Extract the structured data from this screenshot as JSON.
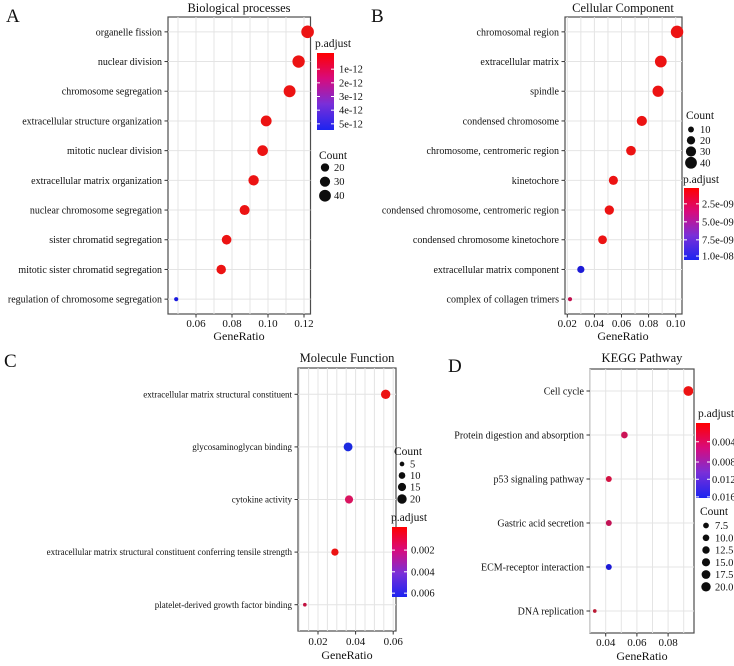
{
  "figure": {
    "background": "#ffffff",
    "panel_border_color": "#4d4d4d",
    "grid_color": "#e4e4e4",
    "text_color": "#111111",
    "count_dot_color": "#0d0d0d",
    "padjust_gradient_stops": [
      "#ff0000",
      "#d80b7c",
      "#7a2fd8",
      "#1c24f0"
    ],
    "red_dot_color": "#ec1313",
    "blue_dot_color": "#1c1ad6"
  },
  "chart_data": [
    {
      "id": "A",
      "type": "scatter",
      "panel_label": "A",
      "title": "Biological processes",
      "xlabel": "GeneRatio",
      "x_ticks": [
        "0.06",
        "0.08",
        "0.10",
        "0.12"
      ],
      "categories": [
        "organelle fission",
        "nuclear division",
        "chromosome segregation",
        "extracellular structure organization",
        "mitotic nuclear division",
        "extracellular matrix organization",
        "nuclear chromosome segregation",
        "sister chromatid segregation",
        "mitotic sister chromatid segregation",
        "regulation of chromosome segregation"
      ],
      "gene_ratio": [
        0.122,
        0.117,
        0.112,
        0.099,
        0.097,
        0.092,
        0.087,
        0.077,
        0.074,
        0.049
      ],
      "count": [
        46,
        44,
        41,
        34,
        33,
        31,
        29,
        27,
        26,
        5
      ],
      "dot_colors": [
        "#ec1313",
        "#ec1313",
        "#ec1313",
        "#ec1313",
        "#ec1313",
        "#ec1313",
        "#ec1313",
        "#ec1313",
        "#ec1313",
        "#1a1ae0"
      ],
      "legend_order": [
        "padjust",
        "count"
      ],
      "legends": {
        "padjust": {
          "title": "p.adjust",
          "ticks": [
            "1e-12",
            "2e-12",
            "3e-12",
            "4e-12",
            "5e-12"
          ]
        },
        "count": {
          "title": "Count",
          "ticks": [
            "20",
            "30",
            "40"
          ],
          "sizes": [
            20,
            30,
            40
          ]
        }
      }
    },
    {
      "id": "B",
      "type": "scatter",
      "panel_label": "B",
      "title": "Cellular Component",
      "xlabel": "GeneRatio",
      "x_ticks": [
        "0.02",
        "0.04",
        "0.06",
        "0.08",
        "0.10"
      ],
      "categories": [
        "chromosomal region",
        "extracellular matrix",
        "spindle",
        "condensed chromosome",
        "chromosome, centromeric region",
        "kinetochore",
        "condensed chromosome, centromeric region",
        "condensed chromosome kinetochore",
        "extracellular matrix component",
        "complex of collagen trimers"
      ],
      "gene_ratio": [
        0.101,
        0.089,
        0.087,
        0.075,
        0.067,
        0.054,
        0.051,
        0.046,
        0.03,
        0.022
      ],
      "count": [
        45,
        40,
        36,
        30,
        27,
        24,
        25,
        22,
        15,
        5
      ],
      "dot_colors": [
        "#ec1313",
        "#ec1313",
        "#ec1313",
        "#ec1313",
        "#ec1313",
        "#ec1313",
        "#ec1313",
        "#ec1313",
        "#1c1ad6",
        "#c2104e"
      ],
      "legend_order": [
        "count",
        "padjust"
      ],
      "legends": {
        "count": {
          "title": "Count",
          "ticks": [
            "10",
            "20",
            "30",
            "40"
          ],
          "sizes": [
            10,
            20,
            30,
            40
          ]
        },
        "padjust": {
          "title": "p.adjust",
          "ticks": [
            "2.5e-09",
            "5.0e-09",
            "7.5e-09",
            "1.0e-08"
          ]
        }
      }
    },
    {
      "id": "C",
      "type": "scatter",
      "panel_label": "C",
      "title": "Molecule Function",
      "xlabel": "GeneRatio",
      "x_ticks": [
        "0.02",
        "0.04",
        "0.06"
      ],
      "categories": [
        "extracellular matrix structural constituent",
        "glycosaminoglycan binding",
        "cytokine activity",
        "extracellular matrix structural constituent conferring tensile strength",
        "platelet-derived growth factor binding"
      ],
      "gene_ratio": [
        0.056,
        0.036,
        0.0365,
        0.029,
        0.013
      ],
      "count": [
        20,
        18,
        15,
        12,
        3
      ],
      "dot_colors": [
        "#ec1313",
        "#1b2ae0",
        "#d9145f",
        "#ec1313",
        "#c21240"
      ],
      "legend_order": [
        "count",
        "padjust"
      ],
      "legends": {
        "count": {
          "title": "Count",
          "ticks": [
            "5",
            "10",
            "15",
            "20"
          ],
          "sizes": [
            5,
            10,
            15,
            20
          ]
        },
        "padjust": {
          "title": "p.adjust",
          "ticks": [
            "0.002",
            "0.004",
            "0.006"
          ]
        }
      }
    },
    {
      "id": "D",
      "type": "scatter",
      "panel_label": "D",
      "title": "KEGG Pathway",
      "xlabel": "GeneRatio",
      "x_ticks": [
        "0.04",
        "0.06",
        "0.08"
      ],
      "categories": [
        "Cell cycle",
        "Protein digestion and absorption",
        "p53 signaling pathway",
        "Gastric acid secretion",
        "ECM-receptor interaction",
        "DNA replication"
      ],
      "gene_ratio": [
        0.093,
        0.052,
        0.042,
        0.042,
        0.042,
        0.033
      ],
      "count": [
        22,
        10,
        8,
        8,
        8,
        3
      ],
      "dot_colors": [
        "#ec1313",
        "#cb1356",
        "#d31343",
        "#c21355",
        "#1c1ad6",
        "#bb1a35"
      ],
      "legend_order": [
        "padjust",
        "count"
      ],
      "legends": {
        "padjust": {
          "title": "p.adjust",
          "ticks": [
            "0.004",
            "0.008",
            "0.012",
            "0.016"
          ]
        },
        "count": {
          "title": "Count",
          "ticks": [
            "7.5",
            "10.0",
            "12.5",
            "15.0",
            "17.5",
            "20.0"
          ],
          "sizes": [
            7.5,
            10,
            12.5,
            15,
            17.5,
            20
          ]
        }
      }
    }
  ]
}
